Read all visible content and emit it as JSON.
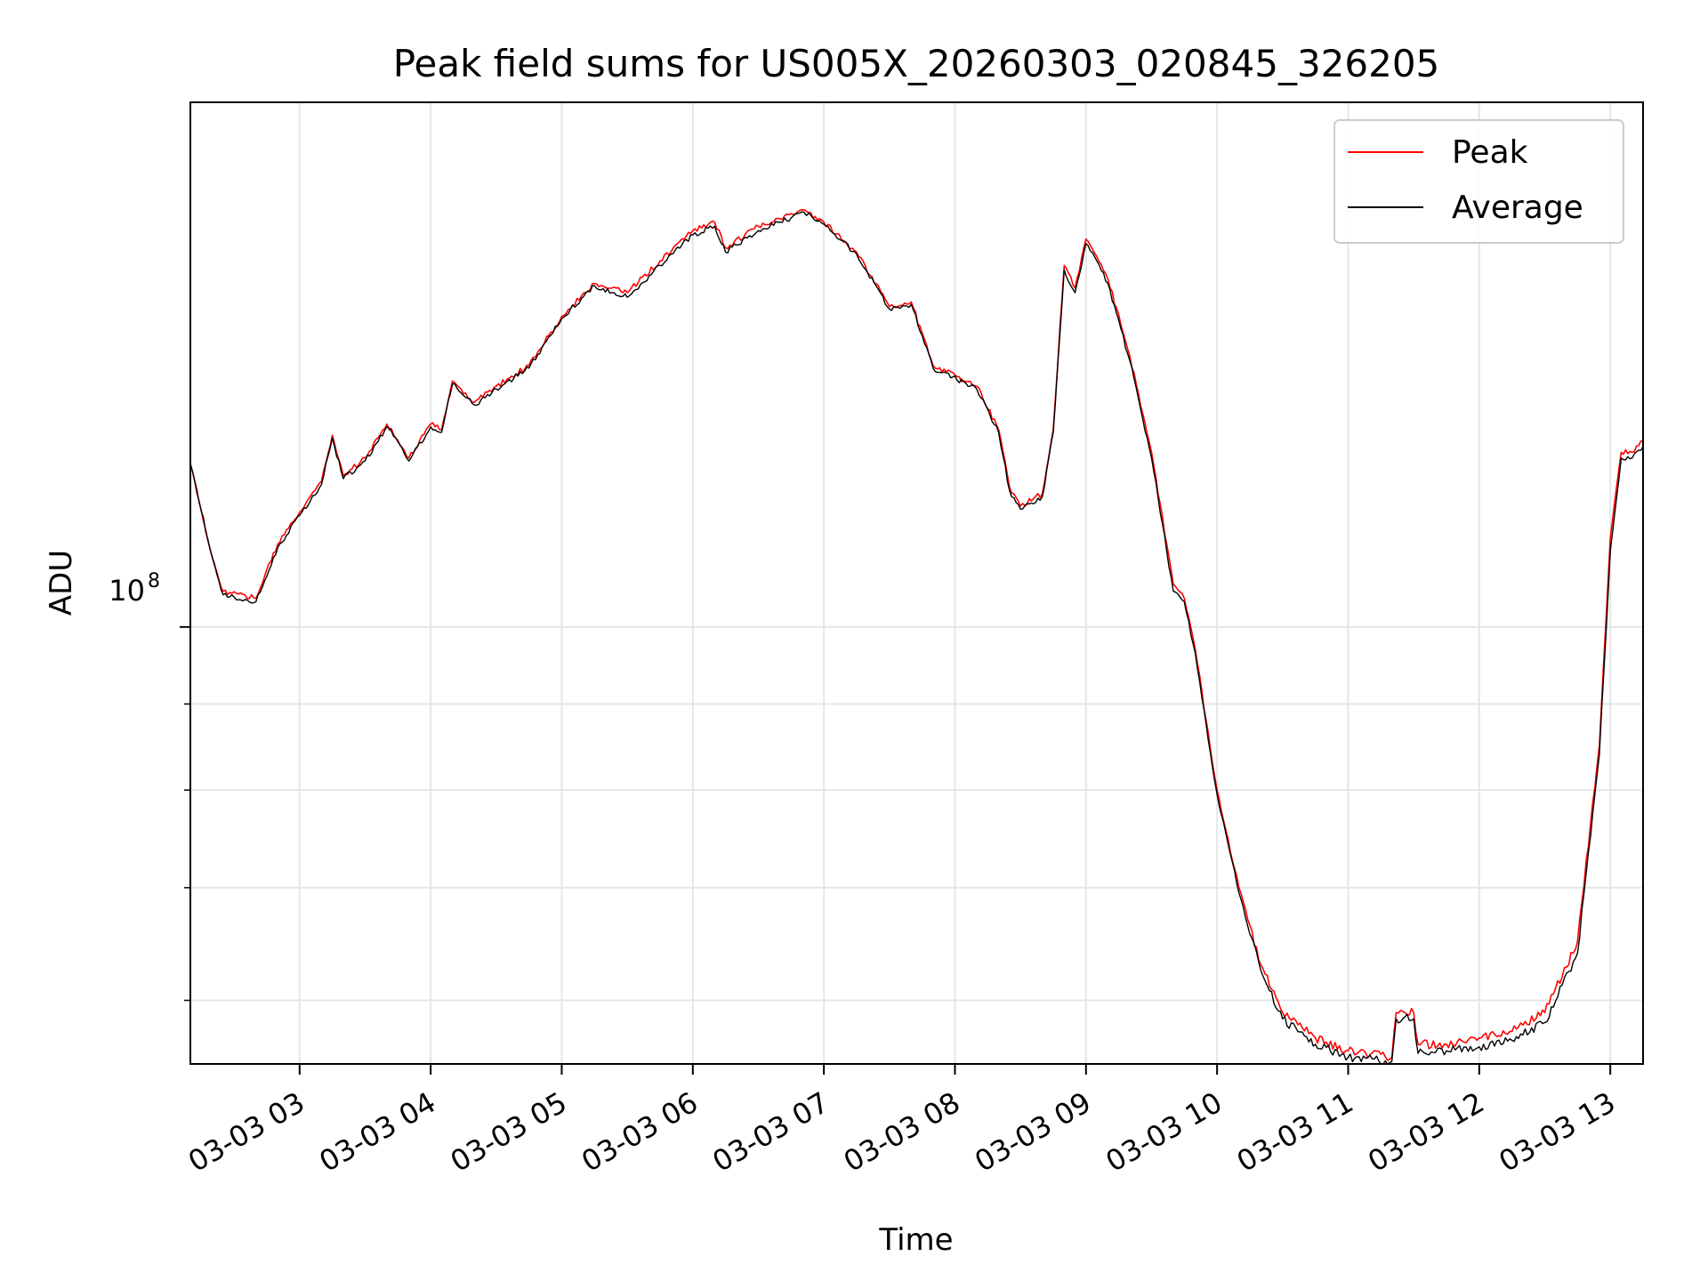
{
  "chart_data": {
    "type": "line",
    "title": "Peak field sums for US005X_20260303_020845_326205",
    "xlabel": "Time",
    "ylabel": "ADU",
    "yscale": "log",
    "ytick_label": {
      "base": "10",
      "exponent": "8",
      "value": 100000000
    },
    "y_minor_ticks": [
      60000000,
      70000000,
      80000000,
      90000000
    ],
    "ylim": [
      55000000,
      205000000
    ],
    "xlim": [
      "2026-03-03 02:10",
      "2026-03-03 13:15"
    ],
    "x_ticks": [
      {
        "value": "2026-03-03 03:00",
        "label": "03-03 03"
      },
      {
        "value": "2026-03-03 04:00",
        "label": "03-03 04"
      },
      {
        "value": "2026-03-03 05:00",
        "label": "03-03 05"
      },
      {
        "value": "2026-03-03 06:00",
        "label": "03-03 06"
      },
      {
        "value": "2026-03-03 07:00",
        "label": "03-03 07"
      },
      {
        "value": "2026-03-03 08:00",
        "label": "03-03 08"
      },
      {
        "value": "2026-03-03 09:00",
        "label": "03-03 09"
      },
      {
        "value": "2026-03-03 10:00",
        "label": "03-03 10"
      },
      {
        "value": "2026-03-03 11:00",
        "label": "03-03 11"
      },
      {
        "value": "2026-03-03 12:00",
        "label": "03-03 12"
      },
      {
        "value": "2026-03-03 13:00",
        "label": "03-03 13"
      }
    ],
    "grid": true,
    "legend_position": "upper right",
    "series": [
      {
        "name": "Peak",
        "color": "#ff0000",
        "points": [
          [
            "2026-03-03 02:10",
            125000000
          ],
          [
            "2026-03-03 02:20",
            110000000
          ],
          [
            "2026-03-03 02:25",
            105000000
          ],
          [
            "2026-03-03 02:40",
            104000000
          ],
          [
            "2026-03-03 02:50",
            112000000
          ],
          [
            "2026-03-03 03:00",
            117000000
          ],
          [
            "2026-03-03 03:10",
            122000000
          ],
          [
            "2026-03-03 03:15",
            130000000
          ],
          [
            "2026-03-03 03:20",
            123000000
          ],
          [
            "2026-03-03 03:30",
            126000000
          ],
          [
            "2026-03-03 03:40",
            132000000
          ],
          [
            "2026-03-03 03:50",
            126000000
          ],
          [
            "2026-03-03 04:00",
            132000000
          ],
          [
            "2026-03-03 04:05",
            131000000
          ],
          [
            "2026-03-03 04:10",
            140000000
          ],
          [
            "2026-03-03 04:20",
            136000000
          ],
          [
            "2026-03-03 04:30",
            139000000
          ],
          [
            "2026-03-03 04:45",
            143000000
          ],
          [
            "2026-03-03 05:00",
            153000000
          ],
          [
            "2026-03-03 05:15",
            160000000
          ],
          [
            "2026-03-03 05:30",
            158000000
          ],
          [
            "2026-03-03 05:45",
            165000000
          ],
          [
            "2026-03-03 06:00",
            172000000
          ],
          [
            "2026-03-03 06:10",
            174000000
          ],
          [
            "2026-03-03 06:15",
            168000000
          ],
          [
            "2026-03-03 06:30",
            173000000
          ],
          [
            "2026-03-03 06:45",
            176000000
          ],
          [
            "2026-03-03 06:50",
            177000000
          ],
          [
            "2026-03-03 07:00",
            174000000
          ],
          [
            "2026-03-03 07:15",
            167000000
          ],
          [
            "2026-03-03 07:30",
            155000000
          ],
          [
            "2026-03-03 07:40",
            156000000
          ],
          [
            "2026-03-03 07:50",
            143000000
          ],
          [
            "2026-03-03 08:10",
            139000000
          ],
          [
            "2026-03-03 08:20",
            131000000
          ],
          [
            "2026-03-03 08:25",
            121000000
          ],
          [
            "2026-03-03 08:30",
            118000000
          ],
          [
            "2026-03-03 08:40",
            120000000
          ],
          [
            "2026-03-03 08:45",
            131000000
          ],
          [
            "2026-03-03 08:50",
            164000000
          ],
          [
            "2026-03-03 08:55",
            159000000
          ],
          [
            "2026-03-03 09:00",
            170000000
          ],
          [
            "2026-03-03 09:10",
            161000000
          ],
          [
            "2026-03-03 09:20",
            145000000
          ],
          [
            "2026-03-03 09:30",
            127000000
          ],
          [
            "2026-03-03 09:40",
            106000000
          ],
          [
            "2026-03-03 09:45",
            104000000
          ],
          [
            "2026-03-03 09:50",
            97000000
          ],
          [
            "2026-03-03 09:55",
            88000000
          ],
          [
            "2026-03-03 10:00",
            80000000
          ],
          [
            "2026-03-03 10:10",
            70000000
          ],
          [
            "2026-03-03 10:20",
            63000000
          ],
          [
            "2026-03-03 10:30",
            59000000
          ],
          [
            "2026-03-03 10:45",
            57000000
          ],
          [
            "2026-03-03 11:00",
            56000000
          ],
          [
            "2026-03-03 11:20",
            55500000
          ],
          [
            "2026-03-03 11:22",
            59000000
          ],
          [
            "2026-03-03 11:30",
            59000000
          ],
          [
            "2026-03-03 11:32",
            56500000
          ],
          [
            "2026-03-03 11:45",
            56500000
          ],
          [
            "2026-03-03 12:00",
            57000000
          ],
          [
            "2026-03-03 12:15",
            57500000
          ],
          [
            "2026-03-03 12:30",
            59000000
          ],
          [
            "2026-03-03 12:45",
            65000000
          ],
          [
            "2026-03-03 12:55",
            85000000
          ],
          [
            "2026-03-03 13:00",
            113000000
          ],
          [
            "2026-03-03 13:05",
            127000000
          ],
          [
            "2026-03-03 13:10",
            127000000
          ],
          [
            "2026-03-03 13:15",
            129000000
          ]
        ]
      },
      {
        "name": "Average",
        "color": "#000000",
        "points": [
          [
            "2026-03-03 02:10",
            125000000
          ],
          [
            "2026-03-03 02:20",
            110000000
          ],
          [
            "2026-03-03 02:25",
            104500000
          ],
          [
            "2026-03-03 02:40",
            103500000
          ],
          [
            "2026-03-03 02:50",
            111500000
          ],
          [
            "2026-03-03 03:00",
            116500000
          ],
          [
            "2026-03-03 03:10",
            121500000
          ],
          [
            "2026-03-03 03:15",
            129500000
          ],
          [
            "2026-03-03 03:20",
            122500000
          ],
          [
            "2026-03-03 03:30",
            125500000
          ],
          [
            "2026-03-03 03:40",
            131500000
          ],
          [
            "2026-03-03 03:50",
            125500000
          ],
          [
            "2026-03-03 04:00",
            131500000
          ],
          [
            "2026-03-03 04:05",
            130500000
          ],
          [
            "2026-03-03 04:10",
            139500000
          ],
          [
            "2026-03-03 04:20",
            135500000
          ],
          [
            "2026-03-03 04:30",
            138500000
          ],
          [
            "2026-03-03 04:45",
            142500000
          ],
          [
            "2026-03-03 05:00",
            152500000
          ],
          [
            "2026-03-03 05:15",
            159500000
          ],
          [
            "2026-03-03 05:30",
            157000000
          ],
          [
            "2026-03-03 05:45",
            164000000
          ],
          [
            "2026-03-03 06:00",
            171000000
          ],
          [
            "2026-03-03 06:10",
            173000000
          ],
          [
            "2026-03-03 06:15",
            167000000
          ],
          [
            "2026-03-03 06:30",
            172000000
          ],
          [
            "2026-03-03 06:45",
            175000000
          ],
          [
            "2026-03-03 06:50",
            176500000
          ],
          [
            "2026-03-03 07:00",
            173500000
          ],
          [
            "2026-03-03 07:15",
            166500000
          ],
          [
            "2026-03-03 07:30",
            154500000
          ],
          [
            "2026-03-03 07:40",
            155500000
          ],
          [
            "2026-03-03 07:50",
            142500000
          ],
          [
            "2026-03-03 08:10",
            138500000
          ],
          [
            "2026-03-03 08:20",
            130500000
          ],
          [
            "2026-03-03 08:25",
            120500000
          ],
          [
            "2026-03-03 08:30",
            117500000
          ],
          [
            "2026-03-03 08:40",
            119500000
          ],
          [
            "2026-03-03 08:45",
            130500000
          ],
          [
            "2026-03-03 08:50",
            163000000
          ],
          [
            "2026-03-03 08:55",
            158000000
          ],
          [
            "2026-03-03 09:00",
            169000000
          ],
          [
            "2026-03-03 09:10",
            160000000
          ],
          [
            "2026-03-03 09:20",
            144000000
          ],
          [
            "2026-03-03 09:30",
            126000000
          ],
          [
            "2026-03-03 09:40",
            105000000
          ],
          [
            "2026-03-03 09:45",
            103500000
          ],
          [
            "2026-03-03 09:50",
            96500000
          ],
          [
            "2026-03-03 09:55",
            87500000
          ],
          [
            "2026-03-03 10:00",
            79500000
          ],
          [
            "2026-03-03 10:10",
            69500000
          ],
          [
            "2026-03-03 10:20",
            62500000
          ],
          [
            "2026-03-03 10:30",
            58500000
          ],
          [
            "2026-03-03 10:45",
            56500000
          ],
          [
            "2026-03-03 11:00",
            55500000
          ],
          [
            "2026-03-03 11:20",
            55200000
          ],
          [
            "2026-03-03 11:22",
            58500000
          ],
          [
            "2026-03-03 11:30",
            58500000
          ],
          [
            "2026-03-03 11:32",
            55800000
          ],
          [
            "2026-03-03 11:45",
            56000000
          ],
          [
            "2026-03-03 12:00",
            56300000
          ],
          [
            "2026-03-03 12:15",
            56800000
          ],
          [
            "2026-03-03 12:30",
            58200000
          ],
          [
            "2026-03-03 12:45",
            64000000
          ],
          [
            "2026-03-03 12:55",
            84000000
          ],
          [
            "2026-03-03 13:00",
            111000000
          ],
          [
            "2026-03-03 13:05",
            126000000
          ],
          [
            "2026-03-03 13:10",
            126000000
          ],
          [
            "2026-03-03 13:15",
            128000000
          ]
        ]
      }
    ]
  }
}
